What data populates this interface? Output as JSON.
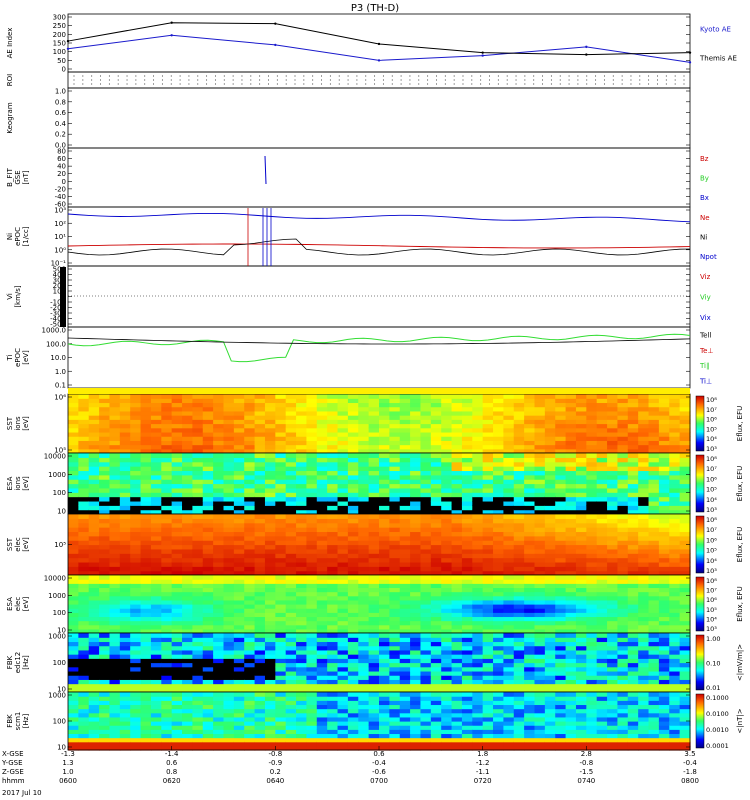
{
  "title": "P3 (TH-D)",
  "colors": {
    "kyoto": "#1a1acc",
    "themis": "#000000",
    "red": "#cc0000",
    "green": "#22cc22",
    "blue": "#0000cc",
    "green_temp": "#33dd33"
  },
  "panels": [
    {
      "id": "ae",
      "ylabel": [
        "AE Index"
      ],
      "ticks": [
        "300",
        "250",
        "200",
        "150",
        "100",
        "50",
        "0"
      ],
      "legend": [
        {
          "text": "Kyoto AE",
          "color": "kyoto"
        },
        {
          "text": "Themis AE",
          "color": "themis"
        }
      ]
    },
    {
      "id": "roi",
      "ylabel": [
        "ROI"
      ],
      "ticks": [],
      "legend": []
    },
    {
      "id": "keogram",
      "ylabel": [
        "Keogram"
      ],
      "ticks": [
        "1.0",
        "0.8",
        "0.6",
        "0.4",
        "0.2",
        "0.0"
      ],
      "legend": []
    },
    {
      "id": "bfit",
      "ylabel": [
        "B_FIT",
        "GSE",
        "[nT]"
      ],
      "ticks": [
        "80",
        "60",
        "40",
        "20",
        "0",
        "-20",
        "-40",
        "-60"
      ],
      "legend": [
        {
          "text": "Bz",
          "color": "red"
        },
        {
          "text": "By",
          "color": "green"
        },
        {
          "text": "Bx",
          "color": "blue"
        }
      ]
    },
    {
      "id": "ni",
      "ylabel": [
        "Ni",
        "ePOC",
        "[1/cc]"
      ],
      "ticks": [
        "10³",
        "10²",
        "10¹",
        "10⁰",
        "10⁻¹"
      ],
      "legend": [
        {
          "text": "Ne",
          "color": "red"
        },
        {
          "text": "Ni",
          "color": "themis"
        },
        {
          "text": "Npot",
          "color": "blue"
        }
      ]
    },
    {
      "id": "vi",
      "ylabel": [
        "Vi",
        "[km/s]"
      ],
      "ticks": [
        "500",
        "400",
        "300",
        "200",
        "100",
        "0",
        "-100",
        "-200",
        "-300",
        "-400",
        "-500"
      ],
      "legend": [
        {
          "text": "Viz",
          "color": "red"
        },
        {
          "text": "Viy",
          "color": "green"
        },
        {
          "text": "Vix",
          "color": "blue"
        }
      ]
    },
    {
      "id": "ti",
      "ylabel": [
        "Ti",
        "ePOC",
        "[eV]"
      ],
      "ticks": [
        "1000.0",
        "100.0",
        "10.0",
        "1.0",
        "0.1"
      ],
      "legend": [
        {
          "text": "Tell",
          "color": "themis"
        },
        {
          "text": "Te⊥",
          "color": "red"
        },
        {
          "text": "Ti∥",
          "color": "green"
        },
        {
          "text": "Ti⊥",
          "color": "blue"
        }
      ]
    },
    {
      "id": "sst_i",
      "ylabel": [
        "SST",
        "ions",
        "[eV]"
      ],
      "ticks": [
        "10⁶",
        "10⁵"
      ],
      "colorbar": {
        "label": "Eflux, EFU",
        "ticks": [
          "10⁸",
          "10⁷",
          "10⁶",
          "10⁵",
          "10⁴",
          "10³"
        ]
      }
    },
    {
      "id": "esa_i",
      "ylabel": [
        "ESA",
        "ions",
        "[eV]"
      ],
      "ticks": [
        "10000",
        "1000",
        "100",
        "10"
      ],
      "colorbar": {
        "label": "Eflux, EFU",
        "ticks": [
          "10⁸",
          "10⁷",
          "10⁶",
          "10⁵",
          "10⁴",
          "10³"
        ]
      }
    },
    {
      "id": "sst_e",
      "ylabel": [
        "SST",
        "elec",
        "[eV]"
      ],
      "ticks": [
        "10⁵"
      ],
      "colorbar": {
        "label": "Eflux, EFU",
        "ticks": [
          "10⁸",
          "10⁷",
          "10⁶",
          "10⁵",
          "10⁴",
          "10³"
        ]
      }
    },
    {
      "id": "esa_e",
      "ylabel": [
        "ESA",
        "elec",
        "[eV]"
      ],
      "ticks": [
        "10000",
        "1000",
        "100",
        "10"
      ],
      "colorbar": {
        "label": "Eflux, EFU",
        "ticks": [
          "10⁸",
          "10⁷",
          "10⁶",
          "10⁵",
          "10⁴",
          "10³"
        ]
      }
    },
    {
      "id": "fbk_e",
      "ylabel": [
        "FBK",
        "edc12",
        "[Hz]"
      ],
      "ticks": [
        "1000",
        "100",
        "10"
      ],
      "colorbar": {
        "label": "<|mV/m|>",
        "ticks": [
          "1.00",
          "0.10",
          "0.01"
        ]
      }
    },
    {
      "id": "fbk_b",
      "ylabel": [
        "FBK",
        "scm1",
        "[Hz]"
      ],
      "ticks": [
        "1000",
        "100",
        "10"
      ],
      "colorbar": {
        "label": "<|nT|>",
        "ticks": [
          "0.1000",
          "0.0100",
          "0.0010",
          "0.0001"
        ]
      }
    }
  ],
  "xaxis": {
    "rows": [
      {
        "label": "X-GSE",
        "values": [
          "-1.3",
          "-1.4",
          "-0.8",
          "0.6",
          "1.8",
          "2.8",
          "3.5"
        ]
      },
      {
        "label": "Y-GSE",
        "values": [
          "1.3",
          "0.6",
          "-0.9",
          "-0.4",
          "-1.2",
          "-0.8",
          "-0.4"
        ]
      },
      {
        "label": "Z-GSE",
        "values": [
          "1.0",
          "0.8",
          "0.2",
          "-0.6",
          "-1.1",
          "-1.5",
          "-1.8"
        ]
      },
      {
        "label": "hhmm",
        "values": [
          "0600",
          "0620",
          "0640",
          "0700",
          "0720",
          "0740",
          "0800"
        ]
      }
    ],
    "date": "2017 Jul 10"
  },
  "chart_data": {
    "type": "line",
    "title": "P3 (TH-D)",
    "x": [
      "0600",
      "0620",
      "0640",
      "0700",
      "0720",
      "0740",
      "0800"
    ],
    "series": [
      {
        "name": "Kyoto AE",
        "values": [
          120,
          190,
          140,
          60,
          85,
          130,
          50
        ]
      },
      {
        "name": "Themis AE",
        "values": [
          160,
          255,
          250,
          145,
          100,
          90,
          100
        ]
      }
    ],
    "ylabel": "AE Index",
    "ylim": [
      0,
      300
    ],
    "time_label": "hhmm",
    "date": "2017 Jul 10"
  }
}
